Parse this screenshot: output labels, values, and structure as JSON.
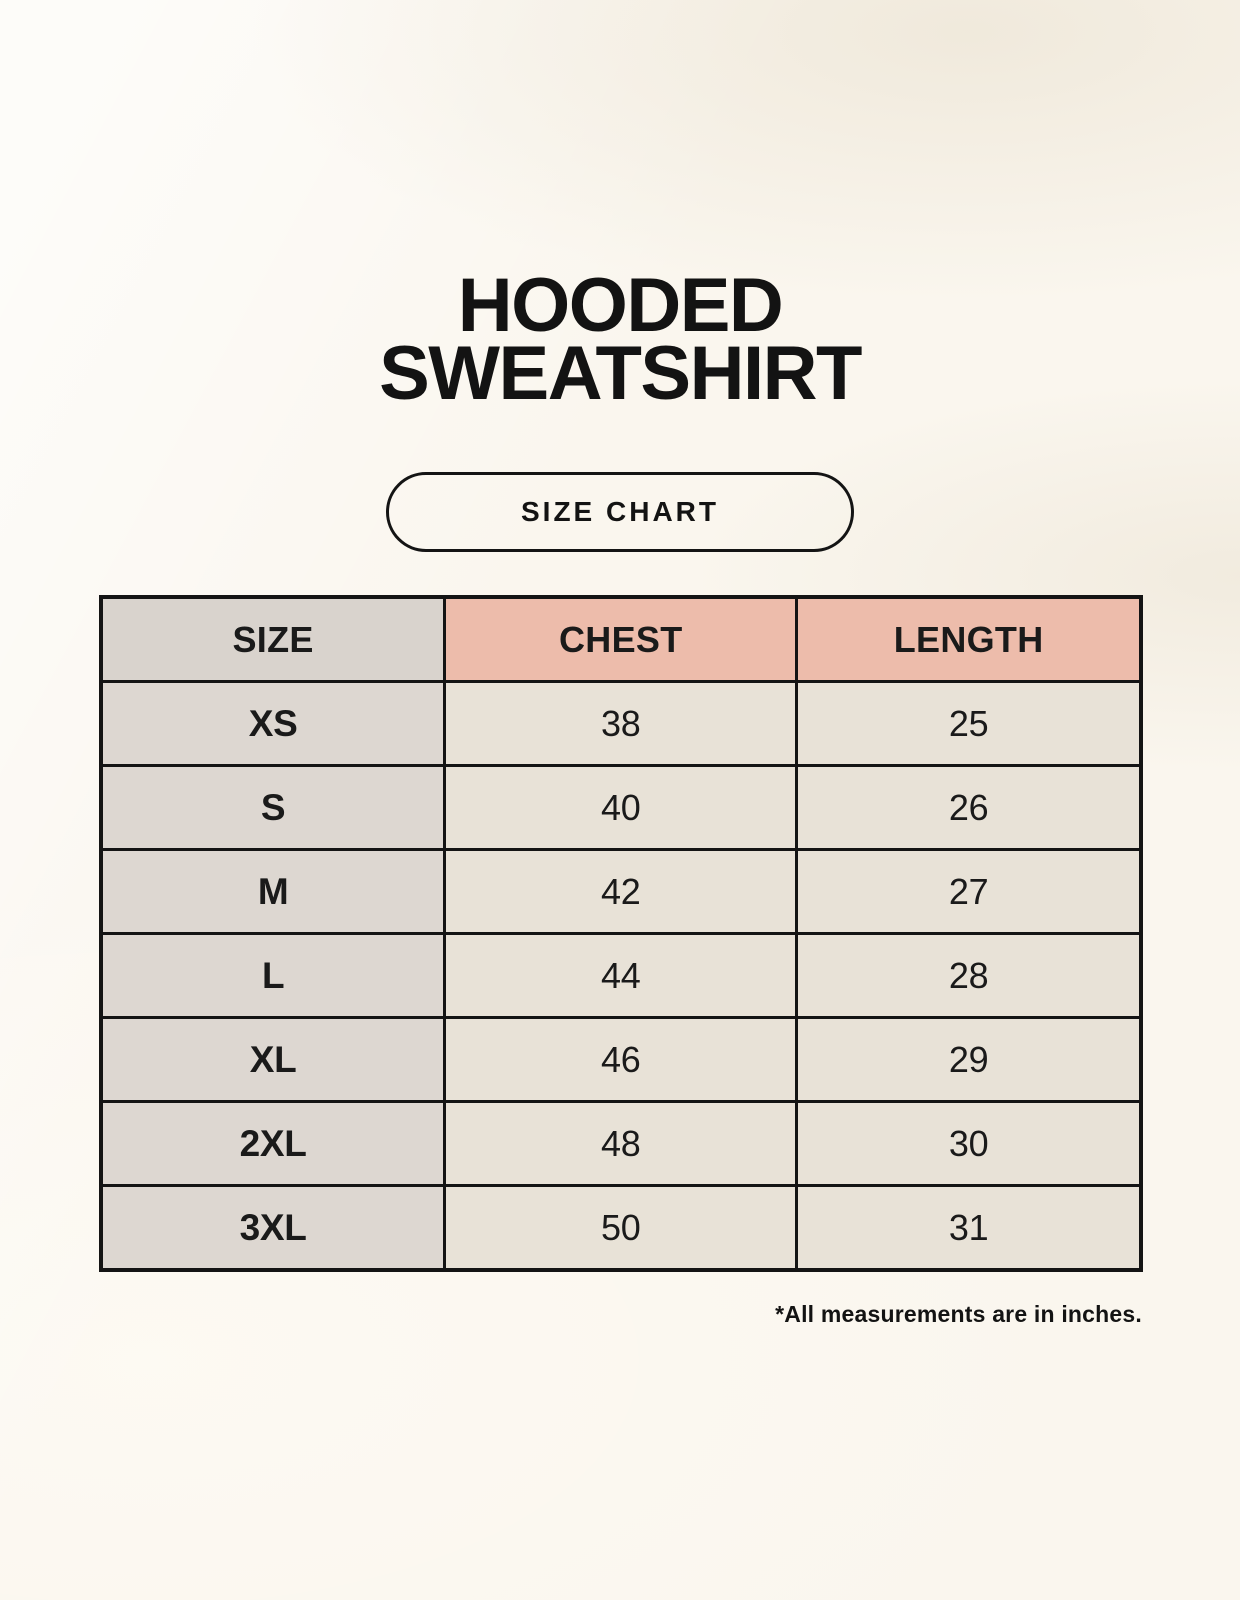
{
  "header": {
    "title_line1": "HOODED",
    "title_line2": "SWEATSHIRT",
    "badge_label": "SIZE CHART"
  },
  "chart_data": {
    "type": "table",
    "title": "HOODED SWEATSHIRT",
    "subtitle": "SIZE CHART",
    "columns": [
      "SIZE",
      "CHEST",
      "LENGTH"
    ],
    "rows": [
      [
        "XS",
        "38",
        "25"
      ],
      [
        "S",
        "40",
        "26"
      ],
      [
        "M",
        "42",
        "27"
      ],
      [
        "L",
        "44",
        "28"
      ],
      [
        "XL",
        "46",
        "29"
      ],
      [
        "2XL",
        "48",
        "30"
      ],
      [
        "3XL",
        "50",
        "31"
      ]
    ],
    "footnote": "*All measurements are in inches."
  },
  "footer": {
    "note": "*All measurements are in inches."
  },
  "colors": {
    "page_background": "#faf6ee",
    "header_accent_salmon": "#edbcab",
    "size_column_gray": "#ddd7d1",
    "data_cell_cream": "#e8e2d7",
    "table_border": "#141414",
    "text": "#131313"
  }
}
